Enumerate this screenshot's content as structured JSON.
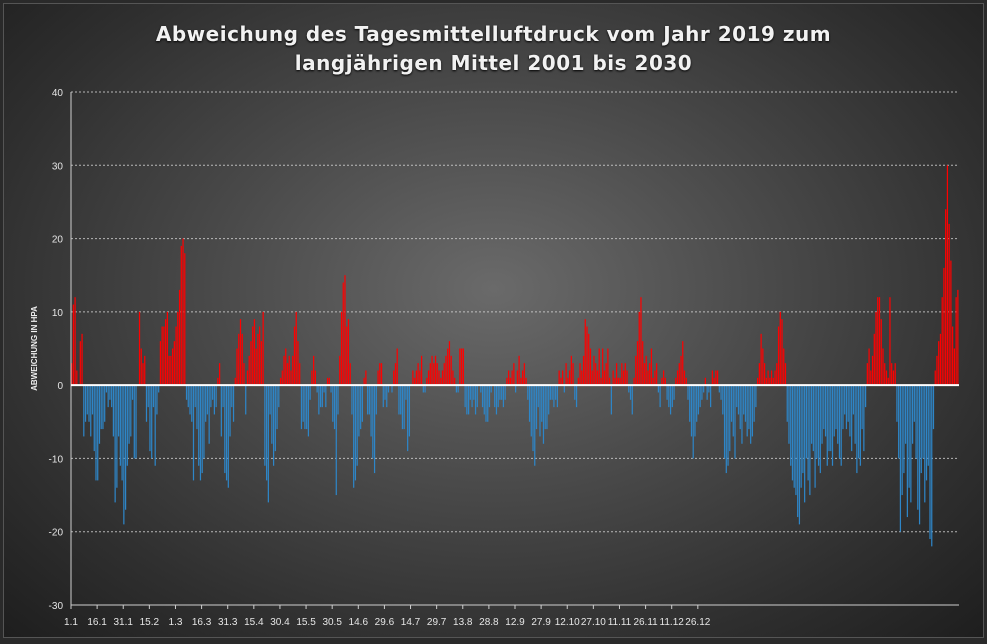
{
  "chart_data": {
    "type": "bar",
    "title_line1": "Abweichung des Tagesmittelluftdruck vom Jahr 2019 zum",
    "title_line2": "langjährigen Mittel 2001 bis 2030",
    "ylabel": "ABWEICHUNG IN HPA",
    "xlabel": "",
    "ylim": [
      -30,
      40
    ],
    "yticks": [
      -30,
      -20,
      -10,
      0,
      10,
      20,
      30,
      40
    ],
    "x_start": "1.1.2019",
    "xtick_labels": [
      "1.1",
      "16.1",
      "31.1",
      "15.2",
      "1.3",
      "16.3",
      "31.3",
      "15.4",
      "30.4",
      "15.5",
      "30.5",
      "14.6",
      "29.6",
      "14.7",
      "29.7",
      "13.8",
      "28.8",
      "12.9",
      "27.9",
      "12.10",
      "27.10",
      "11.11",
      "26.11",
      "11.12",
      "26.12"
    ],
    "grid": true,
    "positive_color": "#ff0000",
    "negative_color": "#2e86c8",
    "zero_line_color": "#ffffff",
    "values": [
      3,
      11,
      12,
      2,
      0,
      6,
      7,
      -7,
      -5,
      -4,
      -5,
      -7,
      -4,
      -9,
      -13,
      -13,
      -8,
      -6,
      -6,
      -5,
      -1,
      -3,
      -2,
      -3,
      -7,
      -16,
      -14,
      -7,
      -11,
      -13,
      -19,
      -17,
      -11,
      -8,
      -7,
      -2,
      -10,
      -10,
      0,
      10,
      5,
      3,
      4,
      -5,
      -3,
      -9,
      -10,
      -3,
      -11,
      -4,
      -1,
      6,
      8,
      8,
      9,
      10,
      4,
      4,
      5,
      6,
      8,
      10,
      13,
      19,
      20,
      18,
      -2,
      -3,
      -4,
      -5,
      -13,
      -3,
      -6,
      -11,
      -13,
      -12,
      -10,
      -5,
      -4,
      -8,
      -3,
      -2,
      -4,
      -3,
      1,
      3,
      -7,
      -3,
      -12,
      -13,
      -14,
      -7,
      -3,
      -5,
      1,
      5,
      7,
      9,
      7,
      3,
      -4,
      2,
      4,
      6,
      8,
      9,
      5,
      7,
      8,
      6,
      10,
      -11,
      -13,
      -16,
      -4,
      -8,
      -11,
      -9,
      -6,
      -3,
      1,
      2,
      4,
      5,
      3,
      4,
      2,
      4,
      8,
      10,
      6,
      3,
      -6,
      -5,
      -6,
      -6,
      -7,
      -2,
      2,
      4,
      2,
      -1,
      -4,
      -3,
      -3,
      -1,
      -3,
      1,
      1,
      -1,
      -5,
      -6,
      -15,
      -4,
      4,
      10,
      14,
      15,
      8,
      9,
      3,
      -4,
      -14,
      -13,
      -11,
      -7,
      -6,
      -5,
      1,
      2,
      -4,
      -4,
      -7,
      -10,
      -12,
      -4,
      2,
      3,
      3,
      -3,
      -2,
      -3,
      -1,
      0,
      -1,
      2,
      3,
      5,
      -4,
      -4,
      -6,
      -6,
      -2,
      -9,
      -7,
      0,
      2,
      1,
      2,
      3,
      2,
      4,
      -1,
      -1,
      1,
      2,
      3,
      4,
      3,
      4,
      3,
      2,
      1,
      2,
      3,
      4,
      5,
      6,
      4,
      2,
      1,
      -1,
      -1,
      5,
      5,
      5,
      -3,
      -4,
      -4,
      -2,
      -3,
      -2,
      -4,
      -3,
      0,
      -1,
      -3,
      -4,
      -5,
      -5,
      -3,
      -1,
      0,
      -3,
      -4,
      -3,
      -2,
      -2,
      -3,
      -2,
      1,
      2,
      1,
      2,
      3,
      -1,
      2,
      4,
      1,
      2,
      3,
      1,
      -2,
      -5,
      -7,
      -9,
      -11,
      -6,
      -3,
      -7,
      -5,
      -8,
      -6,
      -6,
      -4,
      -2,
      -2,
      -3,
      -2,
      -3,
      2,
      1,
      2,
      -1,
      3,
      1,
      2,
      4,
      3,
      -2,
      -3,
      1,
      3,
      2,
      4,
      9,
      8,
      7,
      5,
      2,
      4,
      3,
      2,
      5,
      1,
      5,
      2,
      3,
      5,
      1,
      -4,
      2,
      1,
      3,
      1,
      1,
      3,
      2,
      3,
      2,
      -1,
      -2,
      -4,
      1,
      4,
      6,
      10,
      12,
      6,
      3,
      4,
      2,
      3,
      5,
      1,
      2,
      3,
      -1,
      -3,
      1,
      2,
      1,
      -2,
      -3,
      -4,
      -3,
      -2,
      1,
      2,
      3,
      4,
      6,
      2,
      1,
      -2,
      -5,
      -7,
      -10,
      -7,
      -5,
      -4,
      -3,
      -2,
      -1,
      1,
      -2,
      -1,
      -3,
      2,
      1,
      2,
      2,
      -1,
      -2,
      -4,
      -10,
      -12,
      -11,
      -9,
      -5,
      -7,
      -10,
      -3,
      -4,
      -6,
      -8,
      -4,
      -5,
      -7,
      -6,
      -8,
      -7,
      -5,
      -3,
      1,
      3,
      7,
      5,
      3,
      1,
      2,
      1,
      2,
      1,
      2,
      3,
      8,
      10,
      9,
      5,
      3,
      -5,
      -8,
      -11,
      -13,
      -14,
      -15,
      -18,
      -19,
      -14,
      -12,
      -16,
      -10,
      -13,
      -15,
      -8,
      -9,
      -14,
      -10,
      -11,
      -12,
      -8,
      -6,
      -7,
      -11,
      -9,
      -9,
      -11,
      -7,
      -6,
      -8,
      -10,
      -11,
      -6,
      -4,
      -6,
      -5,
      -7,
      -9,
      -4,
      -8,
      -12,
      -10,
      -11,
      -6,
      -9,
      -3,
      3,
      5,
      2,
      4,
      7,
      10,
      12,
      12,
      9,
      5,
      3,
      2,
      1,
      12,
      3,
      2,
      3,
      -5,
      -10,
      -20,
      -15,
      -12,
      -8,
      -18,
      -14,
      -16,
      -8,
      -5,
      -10,
      -17,
      -19,
      -12,
      -10,
      -16,
      -13,
      -11,
      -21,
      -22,
      -6,
      2,
      4,
      6,
      7,
      12,
      16,
      24,
      30,
      22,
      17,
      8,
      5,
      12,
      13
    ]
  }
}
